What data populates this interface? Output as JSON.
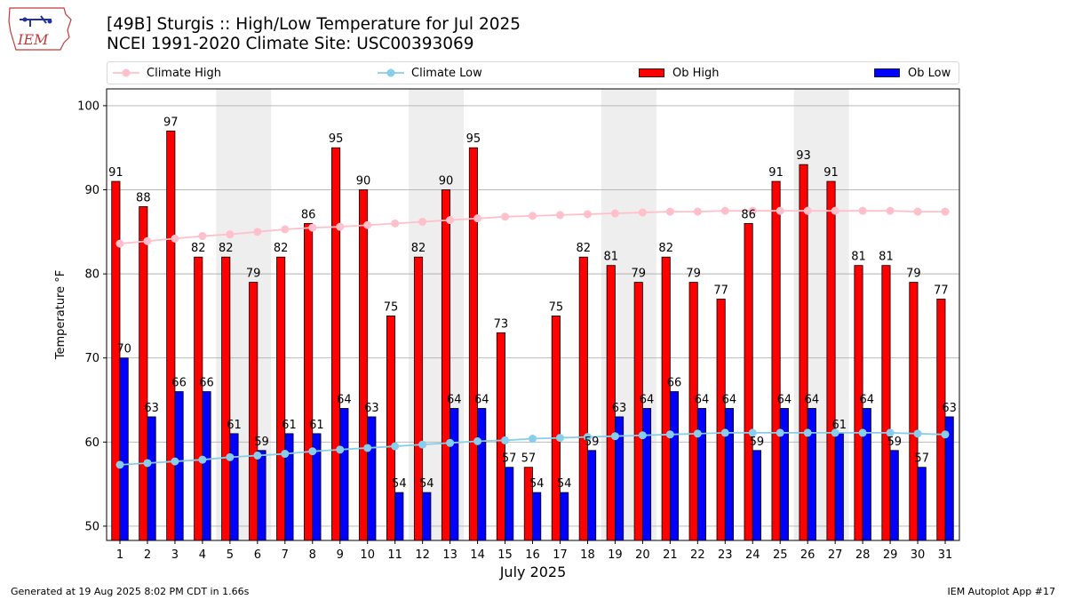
{
  "header": {
    "title_line1": "[49B] Sturgis :: High/Low Temperature for Jul 2025",
    "title_line2": "NCEI 1991-2020 Climate Site: USC00393069"
  },
  "logo": {
    "text": "IEM"
  },
  "legend": {
    "climate_high": "Climate High",
    "climate_low": "Climate Low",
    "ob_high": "Ob High",
    "ob_low": "Ob Low"
  },
  "footer": {
    "left": "Generated at 19 Aug 2025 8:02 PM CDT in 1.66s",
    "right": "IEM Autoplot App #17"
  },
  "colors": {
    "ob_high": "#ff0000",
    "ob_low": "#0000ff",
    "climate_high": "#ffc0cb",
    "climate_low": "#87ceeb",
    "weekend_shade": "#eeeeee",
    "grid": "#b0b0b0"
  },
  "chart_data": {
    "type": "bar",
    "title": "[49B] Sturgis :: High/Low Temperature for Jul 2025",
    "xlabel": "July 2025",
    "ylabel": "Temperature °F",
    "ylim": [
      48.3,
      102
    ],
    "yticks": [
      50,
      60,
      70,
      80,
      90,
      100
    ],
    "grid": true,
    "categories": [
      "1",
      "2",
      "3",
      "4",
      "5",
      "6",
      "7",
      "8",
      "9",
      "10",
      "11",
      "12",
      "13",
      "14",
      "15",
      "16",
      "17",
      "18",
      "19",
      "20",
      "21",
      "22",
      "23",
      "24",
      "25",
      "26",
      "27",
      "28",
      "29",
      "30",
      "31"
    ],
    "shaded_days": [
      [
        5,
        6
      ],
      [
        12,
        13
      ],
      [
        19,
        20
      ],
      [
        26,
        27
      ]
    ],
    "series": [
      {
        "name": "Ob High",
        "kind": "bar",
        "values": [
          91,
          88,
          97,
          82,
          82,
          79,
          82,
          86,
          95,
          90,
          75,
          82,
          90,
          95,
          73,
          57,
          75,
          82,
          81,
          79,
          82,
          79,
          77,
          86,
          91,
          93,
          91,
          81,
          81,
          79,
          77
        ]
      },
      {
        "name": "Ob Low",
        "kind": "bar",
        "values": [
          70,
          63,
          66,
          66,
          61,
          59,
          61,
          61,
          64,
          63,
          54,
          54,
          64,
          64,
          57,
          54,
          54,
          59,
          63,
          64,
          66,
          64,
          64,
          59,
          64,
          64,
          61,
          64,
          59,
          57,
          63
        ]
      },
      {
        "name": "Climate High",
        "kind": "line",
        "values": [
          83.6,
          83.9,
          84.2,
          84.5,
          84.7,
          85.0,
          85.3,
          85.5,
          85.6,
          85.8,
          86.0,
          86.2,
          86.4,
          86.6,
          86.8,
          86.9,
          87.0,
          87.1,
          87.2,
          87.3,
          87.4,
          87.4,
          87.5,
          87.5,
          87.5,
          87.5,
          87.5,
          87.5,
          87.5,
          87.4,
          87.4
        ]
      },
      {
        "name": "Climate Low",
        "kind": "line",
        "values": [
          57.3,
          57.5,
          57.7,
          57.9,
          58.2,
          58.4,
          58.6,
          58.9,
          59.1,
          59.3,
          59.5,
          59.7,
          59.9,
          60.1,
          60.2,
          60.4,
          60.5,
          60.6,
          60.7,
          60.8,
          60.9,
          61.0,
          61.1,
          61.1,
          61.1,
          61.1,
          61.1,
          61.1,
          61.1,
          61.0,
          60.9
        ]
      }
    ]
  }
}
